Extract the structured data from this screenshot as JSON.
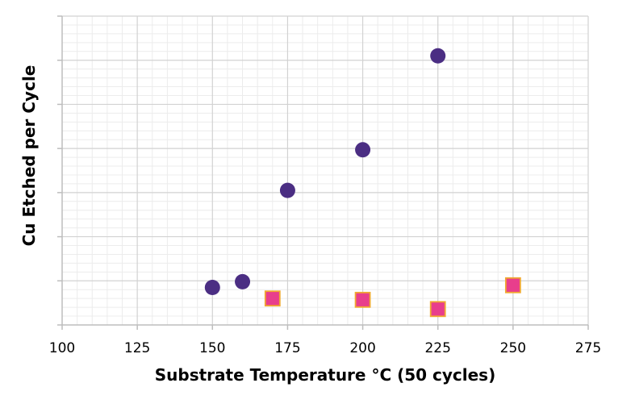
{
  "chart_data": {
    "type": "scatter",
    "title": "",
    "xlabel": "Substrate Temperature °C (50 cycles)",
    "ylabel": "Cu Etched per Cycle",
    "xlim": [
      100,
      275
    ],
    "ylim": [
      0,
      7
    ],
    "x_ticks": [
      "100",
      "125",
      "150",
      "175",
      "200",
      "225",
      "250",
      "275"
    ],
    "y_ticks_labeled": false,
    "grid": true,
    "legend": "none",
    "series": [
      {
        "marker": "circle",
        "color": "#4b2e83",
        "points": [
          {
            "x": 150,
            "y": 0.85
          },
          {
            "x": 160,
            "y": 0.98
          },
          {
            "x": 175,
            "y": 3.05
          },
          {
            "x": 200,
            "y": 3.97
          },
          {
            "x": 225,
            "y": 6.1
          }
        ]
      },
      {
        "marker": "square",
        "color": "#e83e8c",
        "edge_color": "#f0a830",
        "points": [
          {
            "x": 170,
            "y": 0.6
          },
          {
            "x": 200,
            "y": 0.57
          },
          {
            "x": 225,
            "y": 0.36
          },
          {
            "x": 250,
            "y": 0.9
          }
        ]
      }
    ]
  }
}
